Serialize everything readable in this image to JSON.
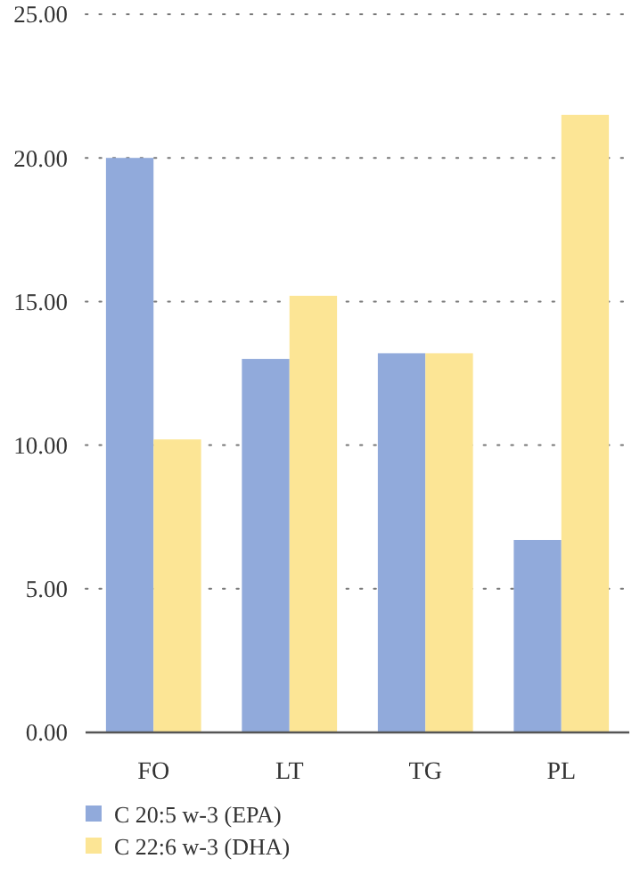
{
  "chart_data": {
    "type": "bar",
    "categories": [
      "FO",
      "LT",
      "TG",
      "PL"
    ],
    "series": [
      {
        "name": "C 20:5 w-3 (EPA)",
        "color": "#91aadb",
        "values": [
          20.0,
          13.0,
          13.2,
          6.7
        ]
      },
      {
        "name": "C 22:6 w-3 (DHA)",
        "color": "#fce595",
        "values": [
          10.2,
          15.2,
          13.2,
          21.5
        ]
      }
    ],
    "ylim": [
      0,
      25
    ],
    "yticks": [
      {
        "value": 0,
        "label": "0.00"
      },
      {
        "value": 5,
        "label": "5.00"
      },
      {
        "value": 10,
        "label": "10.00"
      },
      {
        "value": 15,
        "label": "15.00"
      },
      {
        "value": 20,
        "label": "20.00"
      },
      {
        "value": 25,
        "label": "25.00"
      }
    ],
    "grid": "y",
    "legend": "bottom left"
  }
}
